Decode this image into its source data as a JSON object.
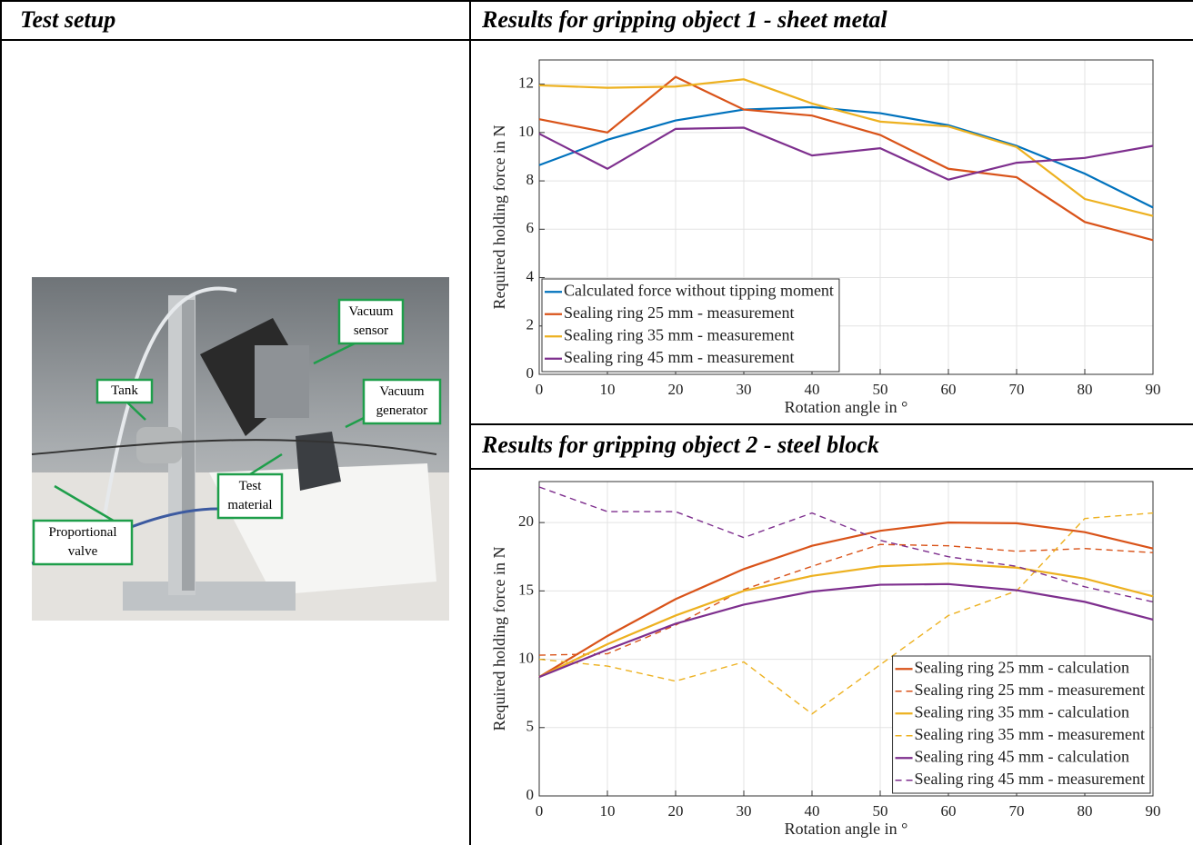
{
  "header": {
    "left_title": "Test setup",
    "right_title": "Results for gripping object 1 - sheet metal",
    "right_title_2": "Results for gripping object 2 - steel block"
  },
  "photo": {
    "callouts": [
      {
        "lines": [
          "Vacuum",
          "sensor"
        ]
      },
      {
        "lines": [
          "Tank"
        ]
      },
      {
        "lines": [
          "Vacuum",
          "generator"
        ]
      },
      {
        "lines": [
          "Test",
          "material"
        ]
      },
      {
        "lines": [
          "Proportional",
          "valve"
        ]
      }
    ]
  },
  "chart_data": [
    {
      "type": "line",
      "x_label": "Rotation angle in °",
      "y_label": "Required holding force in N",
      "x": [
        0,
        10,
        20,
        30,
        40,
        50,
        60,
        70,
        80,
        90
      ],
      "xlim": [
        0,
        90
      ],
      "xticks": [
        0,
        10,
        20,
        30,
        40,
        50,
        60,
        70,
        80,
        90
      ],
      "ylim": [
        0,
        13
      ],
      "yticks": [
        0,
        2,
        4,
        6,
        8,
        10,
        12
      ],
      "grid": true,
      "legend": "lower left",
      "series": [
        {
          "name": "Calculated force without tipping moment",
          "color": "#0072bd",
          "line_style": "solid",
          "values": [
            8.65,
            9.7,
            10.5,
            10.95,
            11.05,
            10.8,
            10.3,
            9.45,
            8.3,
            6.9
          ]
        },
        {
          "name": "Sealing ring 25 mm - measurement",
          "color": "#d95319",
          "line_style": "solid",
          "values": [
            10.55,
            10.0,
            12.3,
            10.95,
            10.7,
            9.9,
            8.5,
            8.15,
            6.3,
            5.55
          ]
        },
        {
          "name": "Sealing ring 35 mm - measurement",
          "color": "#edb120",
          "line_style": "solid",
          "values": [
            11.95,
            11.85,
            11.9,
            12.2,
            11.2,
            10.45,
            10.25,
            9.4,
            7.25,
            6.55
          ]
        },
        {
          "name": "Sealing ring 45 mm - measurement",
          "color": "#7e2f8e",
          "line_style": "solid",
          "values": [
            9.95,
            8.5,
            10.15,
            10.2,
            9.05,
            9.35,
            8.05,
            8.75,
            8.95,
            9.45
          ]
        }
      ]
    },
    {
      "type": "line",
      "x_label": "Rotation angle in °",
      "y_label": "Required holding force in N",
      "x": [
        0,
        10,
        20,
        30,
        40,
        50,
        60,
        70,
        80,
        90
      ],
      "xlim": [
        0,
        90
      ],
      "xticks": [
        0,
        10,
        20,
        30,
        40,
        50,
        60,
        70,
        80,
        90
      ],
      "ylim": [
        0,
        23
      ],
      "yticks": [
        0,
        5,
        10,
        15,
        20
      ],
      "grid": true,
      "legend": "lower right",
      "series": [
        {
          "name": "Sealing ring 25 mm - calculation",
          "color": "#d95319",
          "line_style": "solid",
          "values": [
            8.7,
            11.7,
            14.4,
            16.6,
            18.3,
            19.4,
            20.0,
            19.95,
            19.3,
            18.1
          ]
        },
        {
          "name": "Sealing ring 25 mm - measurement",
          "color": "#d95319",
          "line_style": "dashed",
          "values": [
            10.3,
            10.4,
            12.5,
            15.1,
            16.8,
            18.4,
            18.3,
            17.9,
            18.1,
            17.8
          ]
        },
        {
          "name": "Sealing ring 35 mm - calculation",
          "color": "#edb120",
          "line_style": "solid",
          "values": [
            8.7,
            11.1,
            13.2,
            15.0,
            16.1,
            16.8,
            17.0,
            16.7,
            15.9,
            14.6
          ]
        },
        {
          "name": "Sealing ring 35 mm - measurement",
          "color": "#edb120",
          "line_style": "dashed",
          "values": [
            10.0,
            9.5,
            8.4,
            9.8,
            6.0,
            9.6,
            13.2,
            15.0,
            20.3,
            20.7
          ]
        },
        {
          "name": "Sealing ring 45 mm - calculation",
          "color": "#7e2f8e",
          "line_style": "solid",
          "values": [
            8.7,
            10.7,
            12.6,
            14.0,
            14.95,
            15.45,
            15.5,
            15.05,
            14.2,
            12.9
          ]
        },
        {
          "name": "Sealing ring 45 mm - measurement",
          "color": "#7e2f8e",
          "line_style": "dashed",
          "values": [
            22.6,
            20.8,
            20.8,
            18.9,
            20.7,
            18.7,
            17.5,
            16.8,
            15.3,
            14.2
          ]
        }
      ]
    }
  ]
}
